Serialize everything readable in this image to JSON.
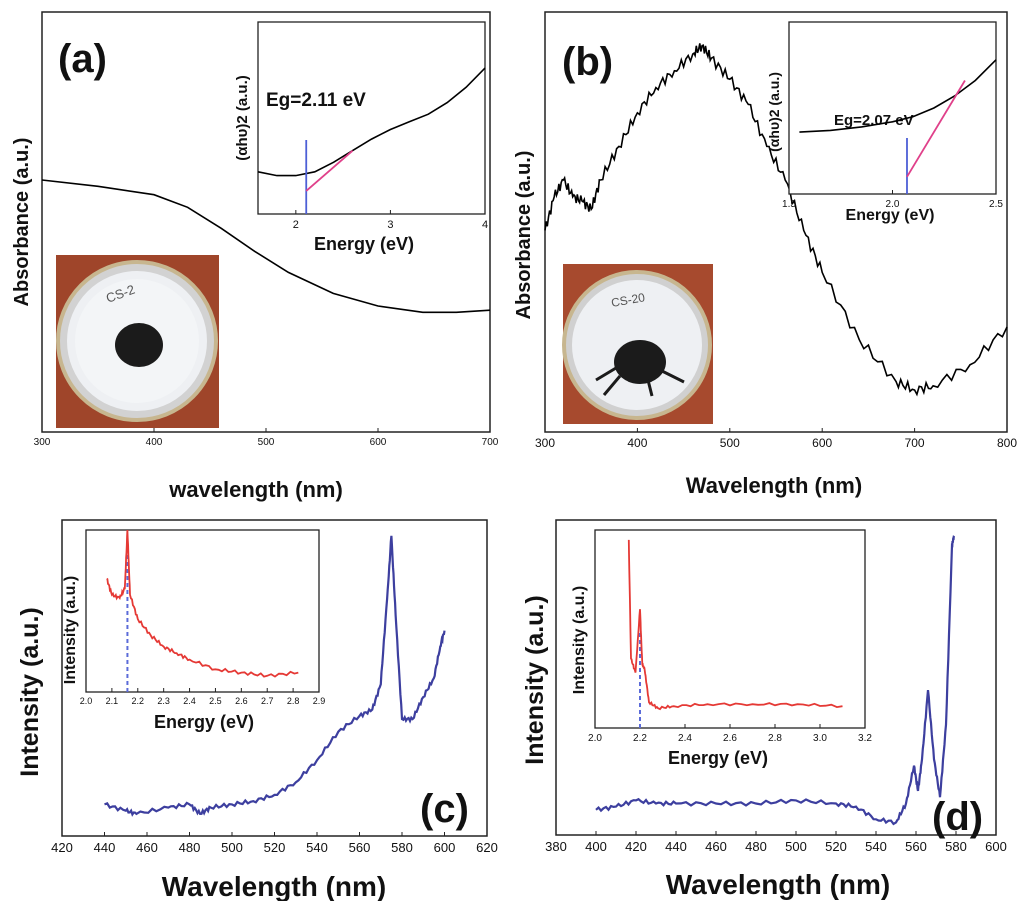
{
  "chart_data": [
    {
      "panel": "(a)",
      "type": "line",
      "xlabel": "wavelength (nm)",
      "ylabel": "Absorbance (a.u.)",
      "xlim": [
        300,
        700
      ],
      "xticks": [
        "300",
        "400",
        "500",
        "600",
        "700"
      ],
      "series": [
        {
          "x": [
            300,
            350,
            400,
            430,
            460,
            490,
            520,
            560,
            600,
            640,
            670,
            700
          ],
          "y": [
            0.6,
            0.585,
            0.565,
            0.535,
            0.485,
            0.43,
            0.38,
            0.33,
            0.3,
            0.285,
            0.285,
            0.29
          ],
          "color": "#000000"
        }
      ],
      "inset": {
        "type": "line",
        "xlabel": "Energy (eV)",
        "ylabel": "(αhυ)2 (a.u.)",
        "annotation": "Eg=2.11 eV",
        "xlim": [
          1.6,
          4.0
        ],
        "xticks": [
          "2",
          "3",
          "4"
        ],
        "series": [
          {
            "x": [
              1.6,
              1.8,
              2.0,
              2.2,
              2.4,
              2.6,
              2.8,
              3.0,
              3.2,
              3.4,
              3.6,
              3.8,
              4.0
            ],
            "y": [
              0.22,
              0.2,
              0.2,
              0.22,
              0.27,
              0.33,
              0.39,
              0.44,
              0.48,
              0.52,
              0.58,
              0.66,
              0.76
            ],
            "color": "#000000"
          }
        ],
        "eg_value": 2.11,
        "fit_line": {
          "x": [
            2.11,
            2.6
          ],
          "y": [
            0.12,
            0.33
          ],
          "color": "#e0408a"
        },
        "eg_line_color": "#4d5fd6"
      },
      "photo_text": "CS-2"
    },
    {
      "panel": "(b)",
      "type": "line",
      "xlabel": "Wavelength (nm)",
      "ylabel": "Absorbance (a.u.)",
      "xlim": [
        300,
        800
      ],
      "xticks": [
        "300",
        "400",
        "500",
        "600",
        "700",
        "800"
      ],
      "series": [
        {
          "x": [
            300,
            310,
            320,
            330,
            340,
            350,
            360,
            380,
            400,
            420,
            440,
            460,
            470,
            480,
            500,
            520,
            540,
            560,
            580,
            600,
            640,
            680,
            700,
            720,
            760,
            800
          ],
          "y": [
            0.48,
            0.56,
            0.6,
            0.56,
            0.55,
            0.53,
            0.6,
            0.68,
            0.76,
            0.82,
            0.86,
            0.9,
            0.92,
            0.89,
            0.84,
            0.78,
            0.68,
            0.6,
            0.48,
            0.38,
            0.22,
            0.12,
            0.1,
            0.11,
            0.16,
            0.25
          ],
          "color": "#000000"
        }
      ],
      "inset": {
        "type": "line",
        "xlabel": "Energy (eV)",
        "ylabel": "(αhυ)2 (a.u.)",
        "annotation": "Eg=2.07 eV",
        "xlim": [
          1.5,
          2.5
        ],
        "xticks": [
          "1.5",
          "2.0",
          "2.5"
        ],
        "series": [
          {
            "x": [
              1.55,
              1.7,
              1.85,
              2.0,
              2.1,
              2.2,
              2.3,
              2.4,
              2.5
            ],
            "y": [
              0.36,
              0.37,
              0.39,
              0.42,
              0.45,
              0.5,
              0.57,
              0.66,
              0.78
            ],
            "color": "#000000"
          }
        ],
        "eg_value": 2.07,
        "fit_line": {
          "x": [
            2.07,
            2.35
          ],
          "y": [
            0.1,
            0.66
          ],
          "color": "#e0408a"
        },
        "eg_line_color": "#4d5fd6"
      },
      "photo_text": "CS-20"
    },
    {
      "panel": "(c)",
      "type": "line",
      "xlabel": "Wavelength (nm)",
      "ylabel": "Intensity (a.u.)",
      "xlim": [
        420,
        620
      ],
      "xticks": [
        "420",
        "440",
        "460",
        "480",
        "500",
        "520",
        "540",
        "560",
        "580",
        "600",
        "620"
      ],
      "series": [
        {
          "x": [
            440,
            450,
            455,
            470,
            480,
            485,
            490,
            500,
            510,
            520,
            530,
            540,
            550,
            560,
            566,
            570,
            573,
            575,
            577,
            580,
            585,
            590,
            595,
            598,
            600
          ],
          "y": [
            0.1,
            0.08,
            0.07,
            0.09,
            0.1,
            0.07,
            0.09,
            0.1,
            0.11,
            0.13,
            0.17,
            0.24,
            0.33,
            0.38,
            0.4,
            0.48,
            0.75,
            0.95,
            0.7,
            0.37,
            0.37,
            0.44,
            0.5,
            0.6,
            0.65
          ],
          "color": "#3d3f9f"
        }
      ],
      "inset": {
        "type": "line",
        "xlabel": "Energy (eV)",
        "ylabel": "Intensity (a.u.)",
        "xlim": [
          2.0,
          2.9
        ],
        "xticks": [
          "2.0",
          "2.1",
          "2.2",
          "2.3",
          "2.4",
          "2.5",
          "2.6",
          "2.7",
          "2.8",
          "2.9"
        ],
        "series": [
          {
            "x": [
              2.08,
              2.1,
              2.13,
              2.15,
              2.16,
              2.17,
              2.2,
              2.25,
              2.3,
              2.35,
              2.4,
              2.5,
              2.6,
              2.7,
              2.82
            ],
            "y": [
              0.7,
              0.6,
              0.58,
              0.64,
              1.0,
              0.6,
              0.45,
              0.35,
              0.28,
              0.24,
              0.2,
              0.14,
              0.12,
              0.1,
              0.12
            ],
            "color": "#e53935"
          }
        ],
        "marker_x": 2.16,
        "marker_color": "#5b6bd9"
      }
    },
    {
      "panel": "(d)",
      "type": "line",
      "xlabel": "Wavelength (nm)",
      "ylabel": "Intensity (a.u.)",
      "xlim": [
        380,
        600
      ],
      "xticks": [
        "380",
        "400",
        "420",
        "440",
        "460",
        "480",
        "500",
        "520",
        "540",
        "560",
        "580",
        "600"
      ],
      "series": [
        {
          "x": [
            400,
            410,
            420,
            430,
            440,
            460,
            480,
            500,
            520,
            530,
            540,
            550,
            555,
            559,
            561,
            563,
            566,
            569,
            572,
            575,
            578,
            579
          ],
          "y": [
            0.08,
            0.09,
            0.11,
            0.1,
            0.1,
            0.1,
            0.1,
            0.11,
            0.1,
            0.09,
            0.05,
            0.04,
            0.1,
            0.22,
            0.14,
            0.24,
            0.46,
            0.24,
            0.12,
            0.35,
            0.92,
            0.95
          ],
          "color": "#3d3f9f"
        }
      ],
      "inset": {
        "type": "line",
        "xlabel": "Energy (eV)",
        "ylabel": "Intensity (a.u.)",
        "xlim": [
          2.0,
          3.2
        ],
        "xticks": [
          "2.0",
          "2.2",
          "2.4",
          "2.6",
          "2.8",
          "3.0",
          "3.2"
        ],
        "series": [
          {
            "x": [
              2.15,
              2.16,
              2.18,
              2.2,
              2.21,
              2.22,
              2.24,
              2.28,
              2.35,
              2.5,
              2.7,
              2.9,
              3.1
            ],
            "y": [
              0.95,
              0.35,
              0.28,
              0.6,
              0.32,
              0.3,
              0.13,
              0.1,
              0.11,
              0.12,
              0.12,
              0.12,
              0.11
            ],
            "color": "#e53935"
          }
        ],
        "marker_x": 2.2,
        "marker_color": "#5b6bd9"
      }
    }
  ]
}
